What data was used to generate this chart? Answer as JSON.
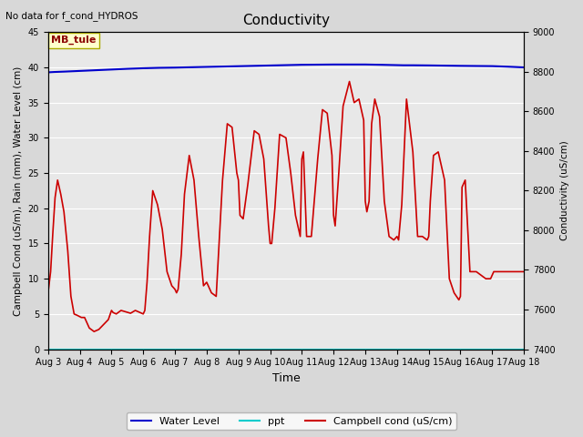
{
  "title": "Conductivity",
  "top_left_text": "No data for f_cond_HYDROS",
  "xlabel": "Time",
  "ylabel_left": "Campbell Cond (uS/m), Rain (mm), Water Level (cm)",
  "ylabel_right": "Conductivity (uS/cm)",
  "xlim_days": [
    3,
    18
  ],
  "ylim_left": [
    0,
    45
  ],
  "ylim_right": [
    7400,
    9000
  ],
  "yticks_left": [
    0,
    5,
    10,
    15,
    20,
    25,
    30,
    35,
    40,
    45
  ],
  "yticks_right": [
    7400,
    7600,
    7800,
    8000,
    8200,
    8400,
    8600,
    8800,
    9000
  ],
  "xtick_labels": [
    "Aug 3",
    "Aug 4",
    "Aug 5",
    "Aug 6",
    "Aug 7",
    "Aug 8",
    "Aug 9",
    "Aug 10",
    "Aug 11",
    "Aug 12",
    "Aug 13",
    "Aug 14",
    "Aug 15",
    "Aug 16",
    "Aug 17",
    "Aug 18"
  ],
  "background_color": "#d8d8d8",
  "plot_bg_color": "#e8e8e8",
  "legend_box_text": "MB_tule",
  "legend_box_bg": "#ffffcc",
  "legend_box_border": "#aaaa00",
  "water_level_color": "#0000cc",
  "ppt_color": "#00cccc",
  "campbell_color": "#cc0000",
  "water_level_data_x": [
    3.0,
    3.2,
    3.5,
    4.0,
    4.5,
    5.0,
    5.5,
    6.0,
    6.5,
    7.0,
    7.5,
    8.0,
    8.5,
    9.0,
    9.5,
    10.0,
    10.5,
    11.0,
    11.5,
    12.0,
    12.5,
    13.0,
    13.5,
    14.0,
    14.2,
    14.5,
    15.0,
    15.5,
    16.0,
    16.5,
    17.0,
    17.5,
    18.0
  ],
  "water_level_data_y": [
    39.3,
    39.35,
    39.4,
    39.5,
    39.6,
    39.7,
    39.8,
    39.88,
    39.94,
    39.97,
    40.02,
    40.07,
    40.12,
    40.17,
    40.22,
    40.27,
    40.32,
    40.37,
    40.39,
    40.41,
    40.41,
    40.41,
    40.37,
    40.32,
    40.3,
    40.3,
    40.28,
    40.25,
    40.22,
    40.2,
    40.18,
    40.1,
    40.0
  ],
  "ppt_data_x": [
    3,
    18
  ],
  "ppt_data_y": [
    0,
    0
  ],
  "campbell_data_x": [
    3.0,
    3.08,
    3.15,
    3.22,
    3.3,
    3.4,
    3.5,
    3.62,
    3.72,
    3.82,
    3.92,
    4.05,
    4.15,
    4.3,
    4.45,
    4.6,
    4.75,
    4.9,
    5.0,
    5.05,
    5.15,
    5.3,
    5.45,
    5.6,
    5.75,
    5.9,
    6.0,
    6.05,
    6.12,
    6.2,
    6.3,
    6.45,
    6.6,
    6.75,
    6.9,
    7.0,
    7.05,
    7.1,
    7.2,
    7.3,
    7.45,
    7.6,
    7.75,
    7.9,
    8.0,
    8.05,
    8.15,
    8.3,
    8.5,
    8.65,
    8.8,
    8.95,
    9.0,
    9.05,
    9.15,
    9.3,
    9.5,
    9.65,
    9.8,
    9.95,
    10.0,
    10.05,
    10.15,
    10.3,
    10.5,
    10.65,
    10.8,
    10.95,
    11.0,
    11.05,
    11.15,
    11.3,
    11.5,
    11.65,
    11.8,
    11.95,
    12.0,
    12.05,
    12.15,
    12.3,
    12.5,
    12.65,
    12.8,
    12.95,
    13.0,
    13.05,
    13.12,
    13.2,
    13.3,
    13.45,
    13.6,
    13.75,
    13.9,
    14.0,
    14.05,
    14.15,
    14.3,
    14.5,
    14.65,
    14.8,
    14.95,
    15.0,
    15.05,
    15.15,
    15.3,
    15.5,
    15.65,
    15.8,
    15.95,
    16.0,
    16.05,
    16.15,
    16.3,
    16.5,
    16.65,
    16.8,
    16.95,
    17.0,
    17.05,
    17.2,
    17.4,
    17.6,
    17.8,
    18.0
  ],
  "campbell_data_y": [
    8.0,
    11.0,
    16.5,
    21.5,
    24.0,
    22.0,
    19.5,
    14.0,
    7.5,
    5.0,
    4.8,
    4.5,
    4.5,
    3.0,
    2.5,
    2.8,
    3.5,
    4.2,
    5.5,
    5.2,
    5.0,
    5.5,
    5.3,
    5.1,
    5.5,
    5.2,
    5.0,
    5.5,
    9.5,
    16.0,
    22.5,
    20.5,
    17.0,
    11.0,
    9.0,
    8.5,
    8.0,
    8.5,
    13.5,
    22.0,
    27.5,
    24.0,
    16.0,
    9.0,
    9.5,
    9.0,
    8.0,
    7.5,
    24.0,
    32.0,
    31.5,
    25.0,
    24.0,
    19.0,
    18.5,
    23.5,
    31.0,
    30.5,
    27.0,
    17.5,
    15.0,
    15.0,
    20.0,
    30.5,
    30.0,
    25.0,
    19.0,
    16.0,
    27.0,
    28.0,
    16.0,
    16.0,
    27.0,
    34.0,
    33.5,
    27.5,
    19.0,
    17.5,
    24.0,
    34.5,
    38.0,
    35.0,
    35.5,
    32.5,
    21.0,
    19.5,
    21.0,
    32.0,
    35.5,
    33.0,
    21.0,
    16.0,
    15.5,
    16.0,
    15.5,
    20.5,
    35.5,
    28.0,
    16.0,
    16.0,
    15.5,
    16.0,
    21.0,
    27.5,
    28.0,
    24.0,
    10.0,
    8.0,
    7.0,
    7.5,
    23.0,
    24.0,
    11.0,
    11.0,
    10.5,
    10.0,
    10.0,
    10.5,
    11.0,
    11.0,
    11.0,
    11.0,
    11.0,
    11.0
  ]
}
